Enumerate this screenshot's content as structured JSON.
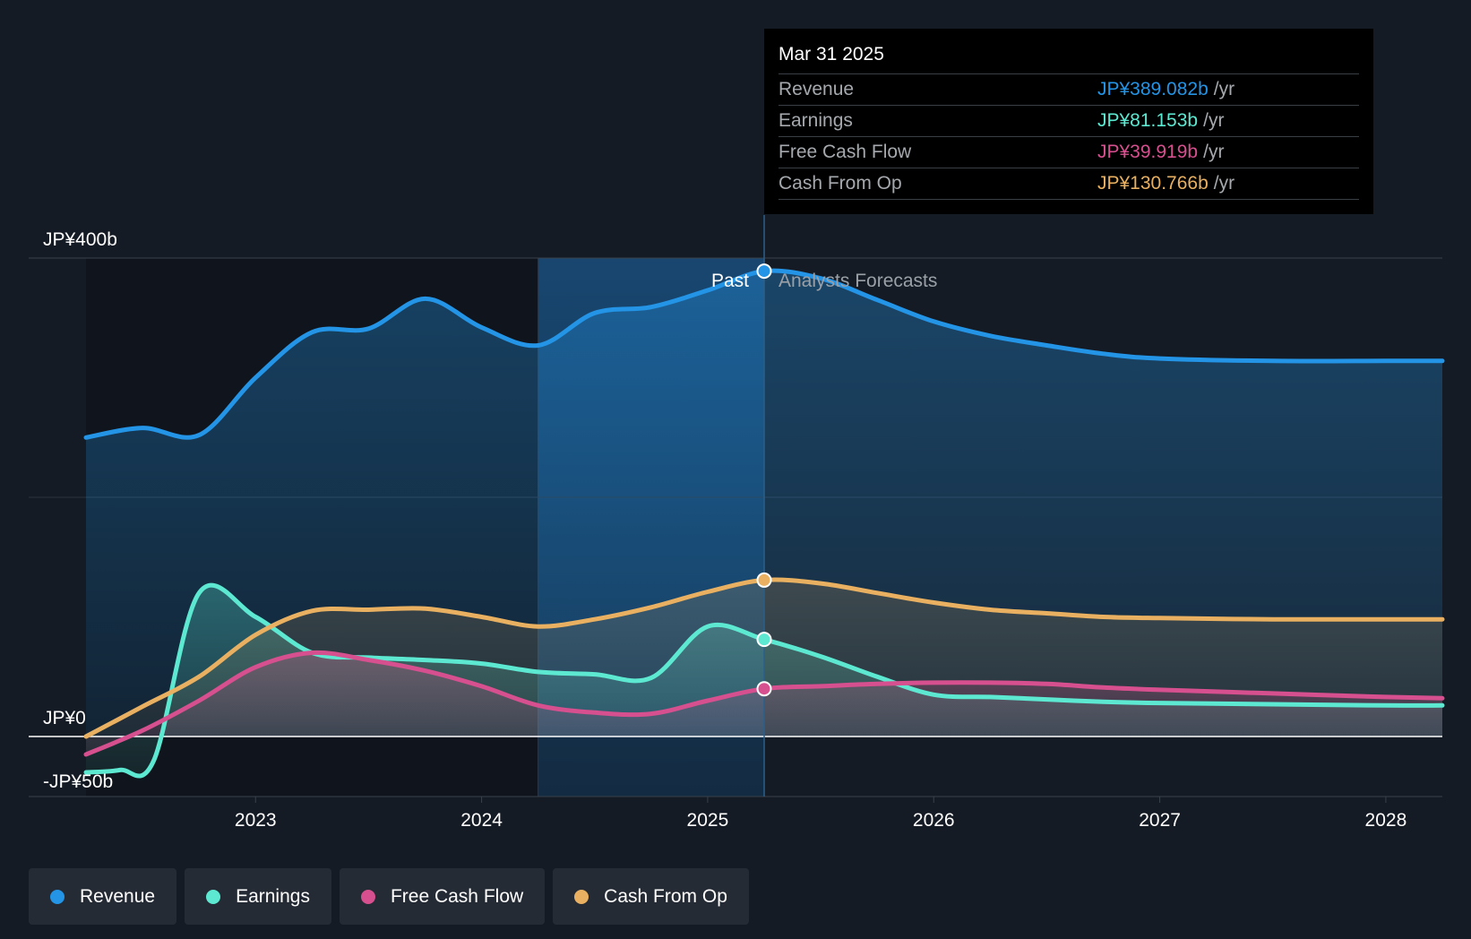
{
  "chart_data": {
    "type": "line",
    "title": "",
    "xlabel": "",
    "ylabel": "",
    "ylim": [
      -50,
      400
    ],
    "y_ticks": [
      {
        "value": 400,
        "label": "JP¥400b"
      },
      {
        "value": 0,
        "label": "JP¥0"
      },
      {
        "value": -50,
        "label": "-JP¥50b"
      }
    ],
    "x_range": [
      2022.25,
      2028.25
    ],
    "x_ticks": [
      {
        "value": 2023,
        "label": "2023"
      },
      {
        "value": 2024,
        "label": "2024"
      },
      {
        "value": 2025,
        "label": "2025"
      },
      {
        "value": 2026,
        "label": "2026"
      },
      {
        "value": 2027,
        "label": "2027"
      },
      {
        "value": 2028,
        "label": "2028"
      }
    ],
    "past_label": "Past",
    "forecast_label": "Analysts Forecasts",
    "divider_x": 2025.25,
    "highlight_start_x": 2024.25,
    "series": [
      {
        "name": "Revenue",
        "color": "#2394e6",
        "points": [
          [
            2022.25,
            250
          ],
          [
            2022.5,
            258
          ],
          [
            2022.75,
            252
          ],
          [
            2023,
            300
          ],
          [
            2023.25,
            338
          ],
          [
            2023.5,
            341
          ],
          [
            2023.75,
            366
          ],
          [
            2024,
            342
          ],
          [
            2024.25,
            327
          ],
          [
            2024.5,
            354
          ],
          [
            2024.75,
            359
          ],
          [
            2025,
            373
          ],
          [
            2025.25,
            389.082
          ],
          [
            2025.5,
            383
          ],
          [
            2025.75,
            365
          ],
          [
            2026,
            347
          ],
          [
            2026.25,
            335
          ],
          [
            2026.5,
            327
          ],
          [
            2026.75,
            320
          ],
          [
            2027,
            316
          ],
          [
            2027.5,
            314
          ],
          [
            2028,
            314
          ],
          [
            2028.25,
            314
          ]
        ]
      },
      {
        "name": "Earnings",
        "color": "#5de8d1",
        "points": [
          [
            2022.25,
            -30
          ],
          [
            2022.4,
            -28
          ],
          [
            2022.55,
            -20
          ],
          [
            2022.75,
            120
          ],
          [
            2023,
            100
          ],
          [
            2023.25,
            70
          ],
          [
            2023.5,
            66
          ],
          [
            2023.75,
            64
          ],
          [
            2024,
            61
          ],
          [
            2024.25,
            54
          ],
          [
            2024.5,
            52
          ],
          [
            2024.75,
            49
          ],
          [
            2025,
            92
          ],
          [
            2025.25,
            81.153
          ],
          [
            2025.5,
            67
          ],
          [
            2025.75,
            50
          ],
          [
            2026,
            35
          ],
          [
            2026.25,
            33
          ],
          [
            2026.5,
            31
          ],
          [
            2026.75,
            29
          ],
          [
            2027,
            28
          ],
          [
            2027.5,
            27
          ],
          [
            2028,
            26
          ],
          [
            2028.25,
            26
          ]
        ]
      },
      {
        "name": "Free Cash Flow",
        "color": "#d64f8e",
        "points": [
          [
            2022.25,
            -15
          ],
          [
            2022.5,
            5
          ],
          [
            2022.75,
            30
          ],
          [
            2023,
            58
          ],
          [
            2023.25,
            70
          ],
          [
            2023.5,
            64
          ],
          [
            2023.75,
            55
          ],
          [
            2024,
            42
          ],
          [
            2024.25,
            26
          ],
          [
            2024.5,
            20
          ],
          [
            2024.75,
            19
          ],
          [
            2025,
            30
          ],
          [
            2025.25,
            39.919
          ],
          [
            2025.5,
            42
          ],
          [
            2025.75,
            44
          ],
          [
            2026,
            45
          ],
          [
            2026.25,
            45
          ],
          [
            2026.5,
            44
          ],
          [
            2026.75,
            41
          ],
          [
            2027,
            39
          ],
          [
            2027.5,
            36
          ],
          [
            2028,
            33
          ],
          [
            2028.25,
            32
          ]
        ]
      },
      {
        "name": "Cash From Op",
        "color": "#e8b060",
        "points": [
          [
            2022.25,
            0
          ],
          [
            2022.5,
            25
          ],
          [
            2022.75,
            50
          ],
          [
            2023,
            85
          ],
          [
            2023.25,
            105
          ],
          [
            2023.5,
            106
          ],
          [
            2023.75,
            107
          ],
          [
            2024,
            100
          ],
          [
            2024.25,
            92
          ],
          [
            2024.5,
            98
          ],
          [
            2024.75,
            108
          ],
          [
            2025,
            121
          ],
          [
            2025.25,
            130.766
          ],
          [
            2025.5,
            128
          ],
          [
            2025.75,
            120
          ],
          [
            2026,
            112
          ],
          [
            2026.25,
            106
          ],
          [
            2026.5,
            103
          ],
          [
            2026.75,
            100
          ],
          [
            2027,
            99
          ],
          [
            2027.5,
            98
          ],
          [
            2028,
            98
          ],
          [
            2028.25,
            98
          ]
        ]
      }
    ]
  },
  "tooltip": {
    "date": "Mar 31 2025",
    "rows": [
      {
        "name": "Revenue",
        "value": "JP¥389.082b",
        "unit": "/yr",
        "color": "#2394e6"
      },
      {
        "name": "Earnings",
        "value": "JP¥81.153b",
        "unit": "/yr",
        "color": "#5de8d1"
      },
      {
        "name": "Free Cash Flow",
        "value": "JP¥39.919b",
        "unit": "/yr",
        "color": "#d64f8e"
      },
      {
        "name": "Cash From Op",
        "value": "JP¥130.766b",
        "unit": "/yr",
        "color": "#e8b060"
      }
    ]
  },
  "legend": [
    {
      "label": "Revenue",
      "color": "#2394e6"
    },
    {
      "label": "Earnings",
      "color": "#5de8d1"
    },
    {
      "label": "Free Cash Flow",
      "color": "#d64f8e"
    },
    {
      "label": "Cash From Op",
      "color": "#e8b060"
    }
  ]
}
